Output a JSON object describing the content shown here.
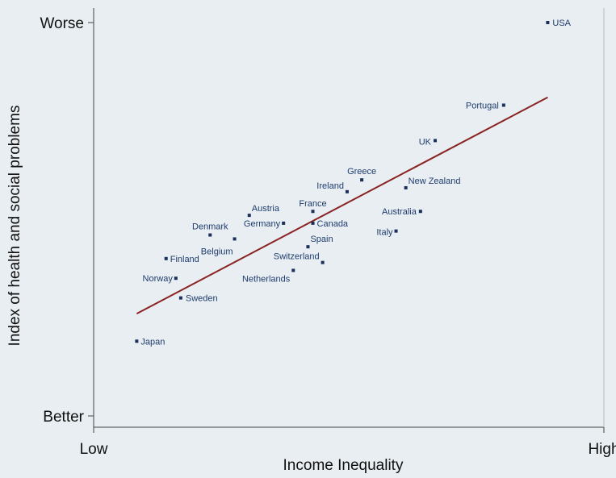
{
  "chart_data": {
    "type": "scatter",
    "xlabel": "Income Inequality",
    "ylabel": "Index of health and social problems",
    "x_tick_labels": [
      "Low",
      "High"
    ],
    "y_tick_labels": [
      "Worse",
      "Better"
    ],
    "xlim": [
      0,
      10
    ],
    "ylim": [
      0,
      10
    ],
    "grid": false,
    "points": [
      {
        "label": "USA",
        "x": 9.0,
        "y": 10.0
      },
      {
        "label": "Portugal",
        "x": 8.1,
        "y": 7.9
      },
      {
        "label": "UK",
        "x": 6.7,
        "y": 7.0
      },
      {
        "label": "Greece",
        "x": 5.2,
        "y": 6.0
      },
      {
        "label": "New Zealand",
        "x": 6.1,
        "y": 5.8
      },
      {
        "label": "Ireland",
        "x": 4.9,
        "y": 5.7
      },
      {
        "label": "France",
        "x": 4.2,
        "y": 5.2
      },
      {
        "label": "Australia",
        "x": 6.4,
        "y": 5.2
      },
      {
        "label": "Austria",
        "x": 2.9,
        "y": 5.1
      },
      {
        "label": "Germany",
        "x": 3.6,
        "y": 4.9
      },
      {
        "label": "Canada",
        "x": 4.2,
        "y": 4.9
      },
      {
        "label": "Italy",
        "x": 5.9,
        "y": 4.7
      },
      {
        "label": "Denmark",
        "x": 2.1,
        "y": 4.6
      },
      {
        "label": "Belgium",
        "x": 2.6,
        "y": 4.5
      },
      {
        "label": "Spain",
        "x": 4.1,
        "y": 4.3
      },
      {
        "label": "Switzerland",
        "x": 4.4,
        "y": 3.9
      },
      {
        "label": "Netherlands",
        "x": 3.8,
        "y": 3.7
      },
      {
        "label": "Finland",
        "x": 1.2,
        "y": 4.0
      },
      {
        "label": "Norway",
        "x": 1.4,
        "y": 3.5
      },
      {
        "label": "Sweden",
        "x": 1.5,
        "y": 3.0
      },
      {
        "label": "Japan",
        "x": 0.6,
        "y": 1.9
      }
    ],
    "trend_line": {
      "x": [
        0.6,
        9.0
      ],
      "y": [
        2.6,
        8.1
      ],
      "color": "#8b2323"
    },
    "colors": {
      "background": "#e8eef1",
      "point": "#1a2f5a",
      "label": "#1f3c6e",
      "trend": "#8b2323"
    }
  }
}
